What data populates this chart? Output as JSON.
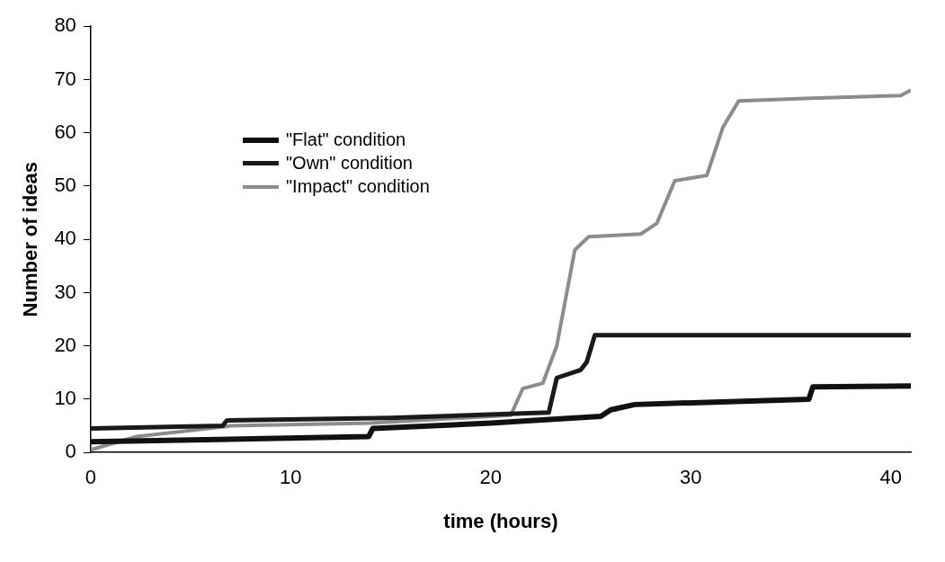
{
  "chart_data": {
    "type": "line",
    "xlabel": "time (hours)",
    "ylabel": "Number of ideas",
    "xlim": [
      0,
      41
    ],
    "xticks": [
      0,
      10,
      20,
      30,
      40
    ],
    "ylim": [
      0,
      80
    ],
    "yticks": [
      0,
      10,
      20,
      30,
      40,
      50,
      60,
      70,
      80
    ],
    "grid": false,
    "legend": "top left",
    "marker": "none",
    "series": [
      {
        "name": "\"Flat\" condition",
        "color": "#111111",
        "x": [
          0,
          13.9,
          14.1,
          20,
          25.5,
          26,
          27.2,
          35.9,
          36.1,
          41
        ],
        "values": [
          2,
          3,
          4.5,
          5.5,
          6.8,
          8,
          9,
          10,
          12.3,
          12.5
        ]
      },
      {
        "name": "\"Own\" condition",
        "color": "#1a1a1a",
        "x": [
          0,
          6.6,
          6.8,
          15,
          22.9,
          23.3,
          24.5,
          24.8,
          25.2,
          41
        ],
        "values": [
          4.5,
          5,
          6,
          6.5,
          7.5,
          14,
          15.5,
          17,
          22,
          22
        ]
      },
      {
        "name": "\"Impact\" condition",
        "color": "#8c8c8c",
        "x": [
          0,
          2.3,
          7,
          14,
          21,
          21.6,
          22.6,
          23.3,
          24.2,
          24.9,
          27.5,
          28.3,
          29.2,
          30.8,
          31.6,
          32.4,
          36,
          40.5,
          41
        ],
        "values": [
          0.5,
          3,
          5,
          5.5,
          7,
          12,
          13,
          20,
          38,
          40.5,
          41,
          43,
          51,
          52,
          61,
          66,
          66.5,
          67,
          68
        ]
      }
    ]
  }
}
